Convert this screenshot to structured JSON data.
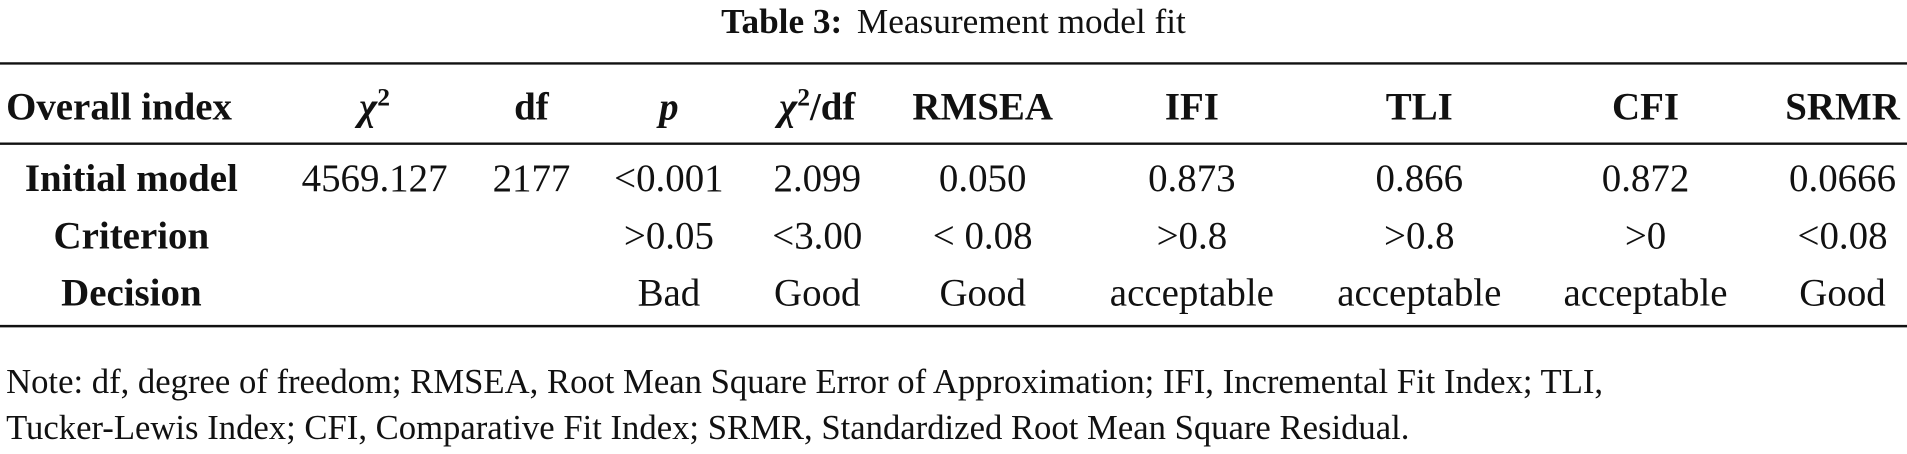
{
  "title": {
    "label": "Table 3:",
    "text": "Measurement model fit"
  },
  "table": {
    "header": [
      {
        "text": "Overall index"
      },
      {
        "text": "χ",
        "sup": "2",
        "italic": true
      },
      {
        "text": "df"
      },
      {
        "text": "p",
        "italic": true
      },
      {
        "text": "χ",
        "sup": "2",
        "rest": "/df",
        "italic": true
      },
      {
        "text": "RMSEA"
      },
      {
        "text": "IFI"
      },
      {
        "text": "TLI"
      },
      {
        "text": "CFI"
      },
      {
        "text": "SRMR"
      }
    ],
    "rows": [
      [
        "Initial model",
        "4569.127",
        "2177",
        "<0.001",
        "2.099",
        "0.050",
        "0.873",
        "0.866",
        "0.872",
        "0.0666"
      ],
      [
        "Criterion",
        null,
        null,
        ">0.05",
        "<3.00",
        "< 0.08",
        ">0.8",
        ">0.8",
        ">0",
        "<0.08"
      ],
      [
        "Decision",
        null,
        null,
        "Bad",
        "Good",
        "Good",
        "acceptable",
        "acceptable",
        "acceptable",
        "Good"
      ]
    ]
  },
  "note": [
    "Note: df, degree of freedom; RMSEA, Root Mean Square Error of Approximation; IFI, Incremental Fit Index; TLI,",
    "Tucker-Lewis Index; CFI, Comparative Fit Index; SRMR, Standardized Root Mean Square Residual."
  ]
}
